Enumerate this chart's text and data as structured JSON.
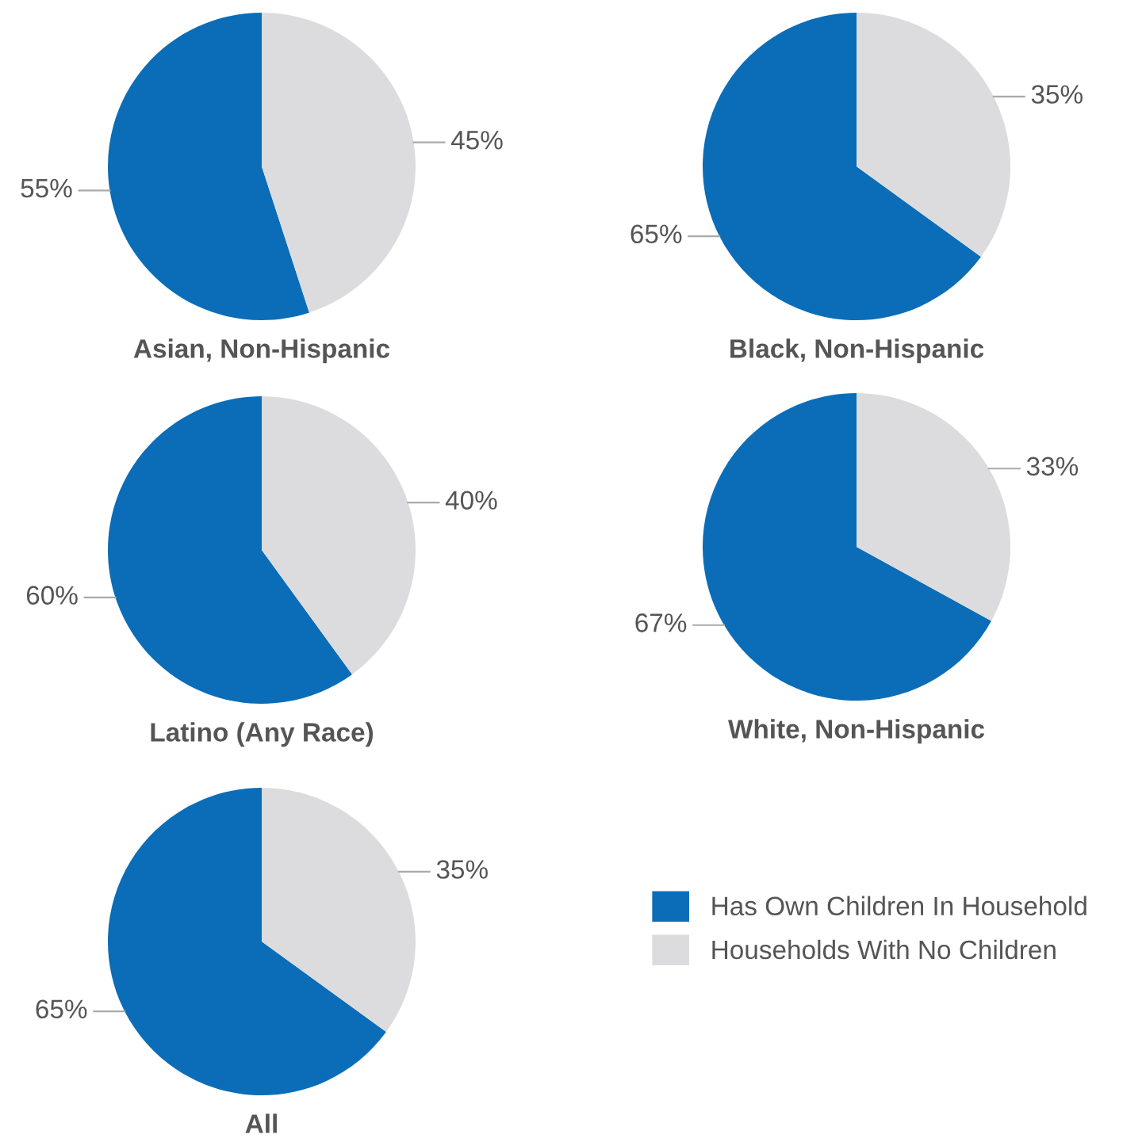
{
  "chart_data": [
    {
      "type": "pie",
      "title": "Asian, Non-Hispanic",
      "categories": [
        "Has Own Children In Household",
        "Households With No Children"
      ],
      "values": [
        55,
        45
      ],
      "value_labels": [
        "55%",
        "45%"
      ],
      "colors": [
        "#0b6db7",
        "#dcdcde"
      ],
      "legend": "bottom right"
    },
    {
      "type": "pie",
      "title": "Black, Non-Hispanic",
      "categories": [
        null,
        null
      ],
      "values": [
        65,
        35
      ],
      "value_labels": [
        "65%",
        "35%"
      ],
      "colors": [
        "#0b6db7",
        "#dcdcde"
      ]
    },
    {
      "type": "pie",
      "title": "Latino (Any Race)",
      "categories": [
        null,
        null
      ],
      "values": [
        60,
        40
      ],
      "value_labels": [
        "60%",
        "40%"
      ],
      "colors": [
        "#0b6db7",
        "#dcdcde"
      ]
    },
    {
      "type": "pie",
      "title": "White, Non-Hispanic",
      "categories": [
        null,
        null
      ],
      "values": [
        67,
        33
      ],
      "value_labels": [
        "67%",
        "33%"
      ],
      "colors": [
        "#0b6db7",
        "#dcdcde"
      ]
    },
    {
      "type": "pie",
      "title": "All",
      "categories": [
        null,
        null
      ],
      "values": [
        65,
        35
      ],
      "value_labels": [
        "65%",
        "35%"
      ],
      "colors": [
        "#0b6db7",
        "#dcdcde"
      ]
    }
  ]
}
